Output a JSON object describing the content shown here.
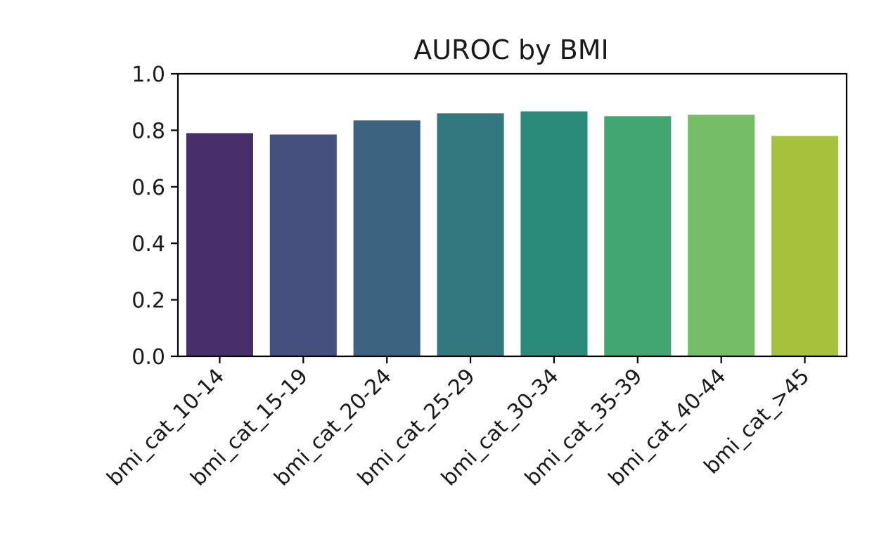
{
  "chart_data": {
    "type": "bar",
    "title": "AUROC by BMI",
    "xlabel": "",
    "ylabel": "",
    "categories": [
      "bmi_cat_10-14",
      "bmi_cat_15-19",
      "bmi_cat_20-24",
      "bmi_cat_25-29",
      "bmi_cat_30-34",
      "bmi_cat_35-39",
      "bmi_cat_40-44",
      "bmi_cat_>45"
    ],
    "values": [
      0.79,
      0.785,
      0.835,
      0.86,
      0.867,
      0.85,
      0.855,
      0.78
    ],
    "colors": [
      "#482f6b",
      "#46507e",
      "#3c6480",
      "#33787e",
      "#2a8b7a",
      "#42a673",
      "#75be67",
      "#a6c23d"
    ],
    "ylim": [
      0.0,
      1.0
    ],
    "yticks": [
      0.0,
      0.2,
      0.4,
      0.6,
      0.8,
      1.0
    ],
    "ytick_labels": [
      "0.0",
      "0.2",
      "0.4",
      "0.6",
      "0.8",
      "1.0"
    ],
    "grid": false,
    "legend": "none"
  }
}
